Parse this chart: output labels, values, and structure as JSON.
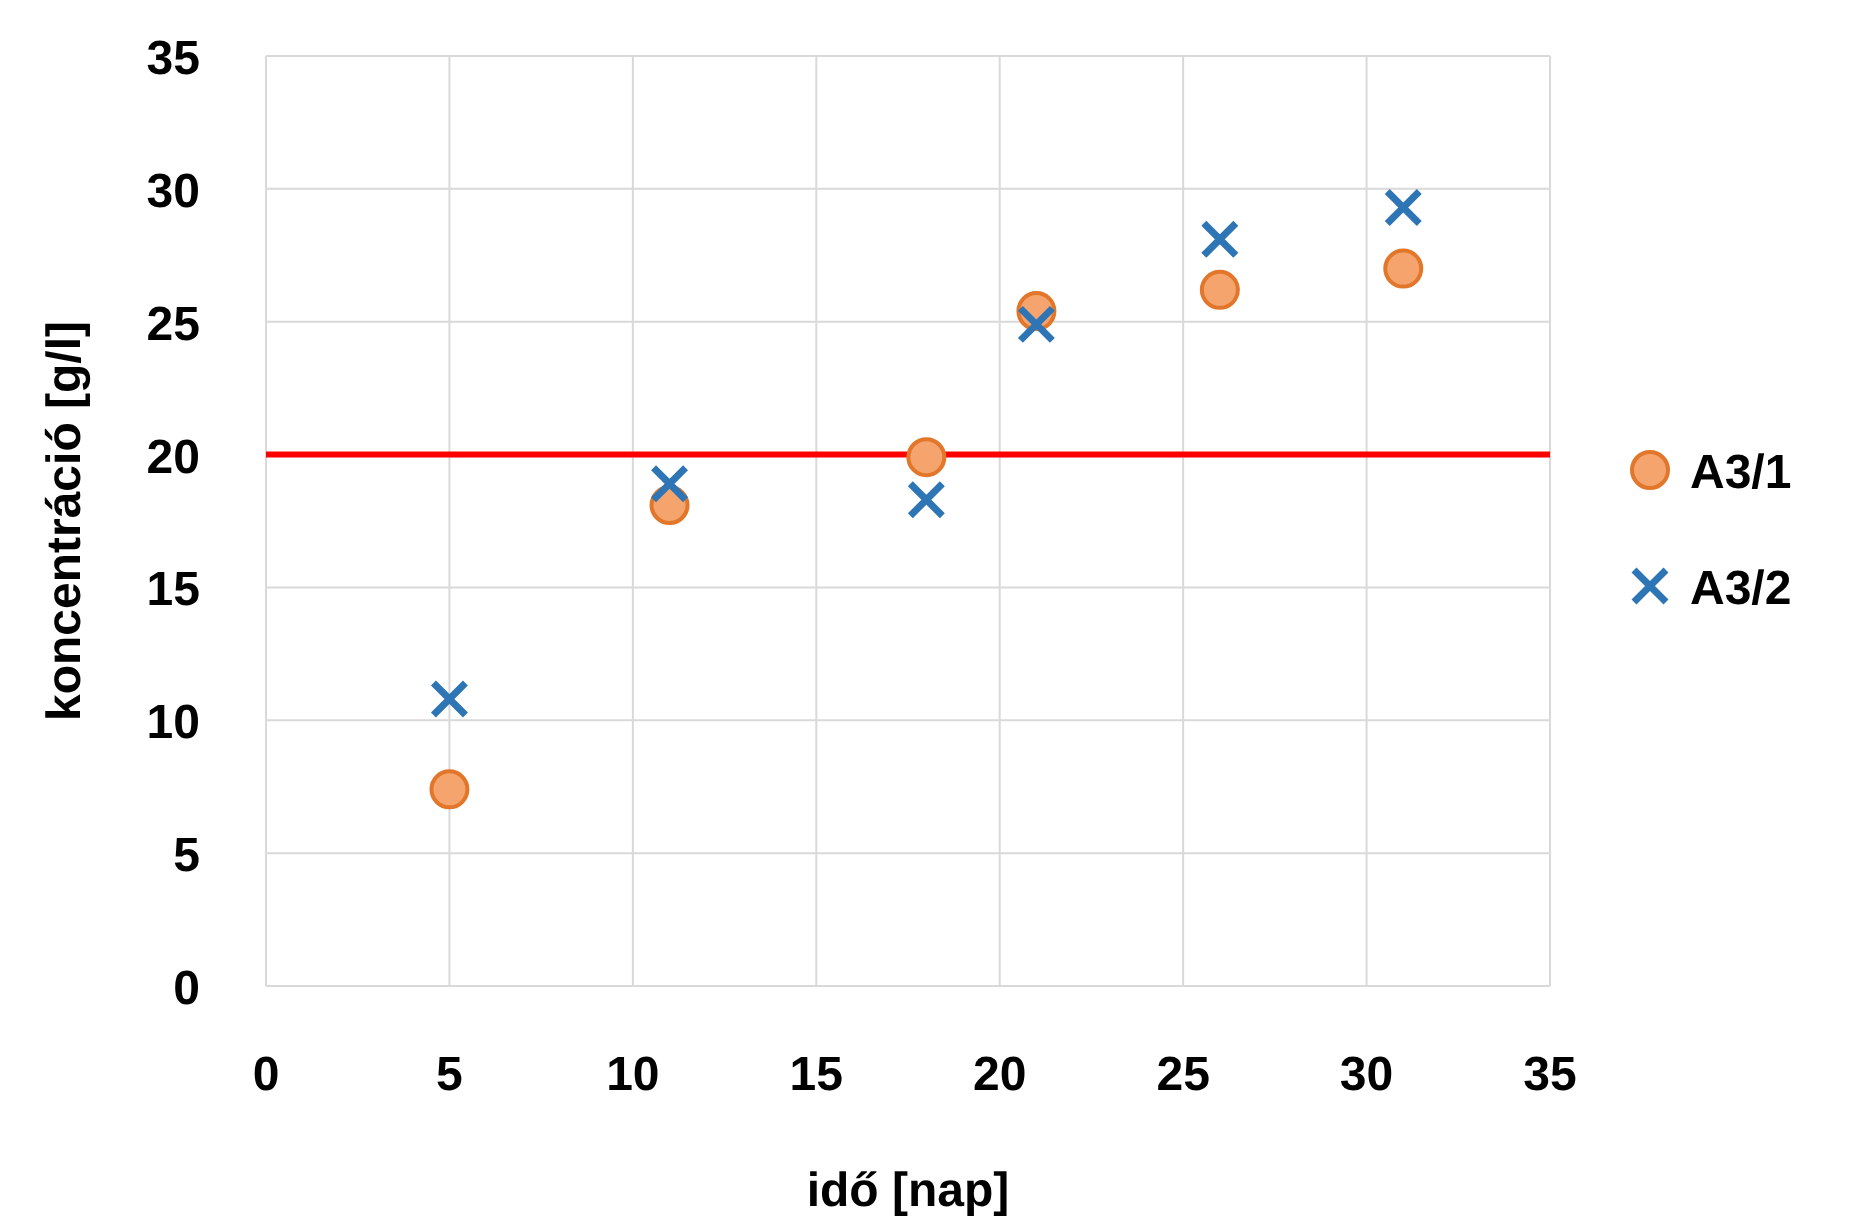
{
  "chart_data": {
    "type": "scatter",
    "xlabel": "idő [nap]",
    "ylabel": "koncentráció [g/l]",
    "xlim": [
      0,
      35
    ],
    "xticks": [
      0,
      5,
      10,
      15,
      20,
      25,
      30,
      35
    ],
    "ylim": [
      0,
      35
    ],
    "yticks": [
      0,
      5,
      10,
      15,
      20,
      25,
      30,
      35
    ],
    "grid": true,
    "legend": "right",
    "series": [
      {
        "name": "A3/1",
        "color": "#f4a46c",
        "marker": "circle",
        "x": [
          5,
          11,
          18,
          21,
          26,
          31
        ],
        "values": [
          7.4,
          18.1,
          19.9,
          25.4,
          26.2,
          27.0
        ]
      },
      {
        "name": "A3/2",
        "color": "#2e75b6",
        "marker": "cross",
        "x": [
          5,
          11,
          18,
          21,
          26,
          31
        ],
        "values": [
          10.8,
          18.9,
          18.3,
          24.9,
          28.1,
          29.3
        ]
      }
    ],
    "ref_lines": [
      {
        "axis": "y",
        "value": 20,
        "color": "#ff0000"
      }
    ]
  }
}
